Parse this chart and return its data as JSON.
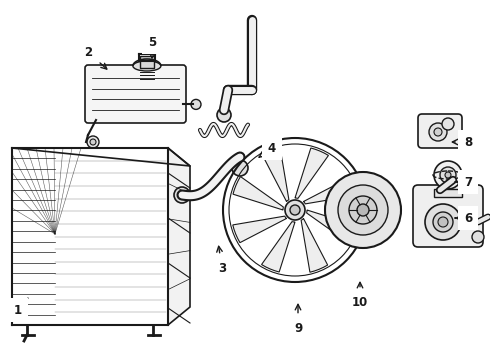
{
  "bg_color": "#ffffff",
  "line_color": "#1a1a1a",
  "figsize": [
    4.9,
    3.6
  ],
  "dpi": 100,
  "labels": {
    "1": [
      18,
      310,
      28,
      298
    ],
    "2": [
      88,
      52,
      110,
      72
    ],
    "3": [
      222,
      268,
      218,
      242
    ],
    "4": [
      272,
      148,
      258,
      158
    ],
    "5": [
      152,
      42,
      152,
      62
    ],
    "6": [
      468,
      218,
      452,
      218
    ],
    "7": [
      468,
      182,
      452,
      182
    ],
    "8": [
      468,
      142,
      448,
      142
    ],
    "9": [
      298,
      328,
      298,
      300
    ],
    "10": [
      360,
      302,
      360,
      278
    ]
  }
}
